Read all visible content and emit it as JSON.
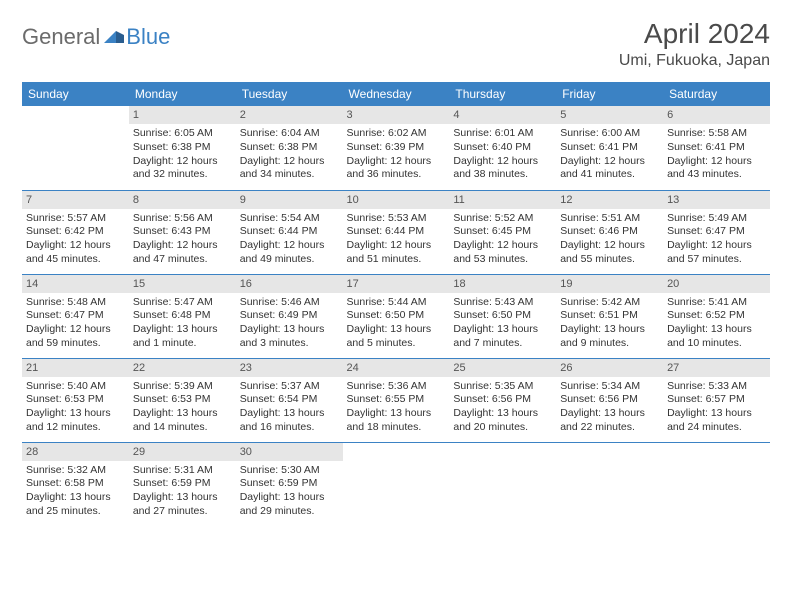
{
  "logo": {
    "general": "General",
    "blue": "Blue"
  },
  "title": "April 2024",
  "location": "Umi, Fukuoka, Japan",
  "weekdays": [
    "Sunday",
    "Monday",
    "Tuesday",
    "Wednesday",
    "Thursday",
    "Friday",
    "Saturday"
  ],
  "colors": {
    "header_bg": "#3b82c4",
    "header_text": "#ffffff",
    "daynum_bg": "#e6e6e6",
    "border": "#3b82c4",
    "text": "#333333",
    "logo_gray": "#6b6b6b",
    "logo_blue": "#3b82c4"
  },
  "weeks": [
    [
      null,
      {
        "n": "1",
        "sr": "Sunrise: 6:05 AM",
        "ss": "Sunset: 6:38 PM",
        "d1": "Daylight: 12 hours",
        "d2": "and 32 minutes."
      },
      {
        "n": "2",
        "sr": "Sunrise: 6:04 AM",
        "ss": "Sunset: 6:38 PM",
        "d1": "Daylight: 12 hours",
        "d2": "and 34 minutes."
      },
      {
        "n": "3",
        "sr": "Sunrise: 6:02 AM",
        "ss": "Sunset: 6:39 PM",
        "d1": "Daylight: 12 hours",
        "d2": "and 36 minutes."
      },
      {
        "n": "4",
        "sr": "Sunrise: 6:01 AM",
        "ss": "Sunset: 6:40 PM",
        "d1": "Daylight: 12 hours",
        "d2": "and 38 minutes."
      },
      {
        "n": "5",
        "sr": "Sunrise: 6:00 AM",
        "ss": "Sunset: 6:41 PM",
        "d1": "Daylight: 12 hours",
        "d2": "and 41 minutes."
      },
      {
        "n": "6",
        "sr": "Sunrise: 5:58 AM",
        "ss": "Sunset: 6:41 PM",
        "d1": "Daylight: 12 hours",
        "d2": "and 43 minutes."
      }
    ],
    [
      {
        "n": "7",
        "sr": "Sunrise: 5:57 AM",
        "ss": "Sunset: 6:42 PM",
        "d1": "Daylight: 12 hours",
        "d2": "and 45 minutes."
      },
      {
        "n": "8",
        "sr": "Sunrise: 5:56 AM",
        "ss": "Sunset: 6:43 PM",
        "d1": "Daylight: 12 hours",
        "d2": "and 47 minutes."
      },
      {
        "n": "9",
        "sr": "Sunrise: 5:54 AM",
        "ss": "Sunset: 6:44 PM",
        "d1": "Daylight: 12 hours",
        "d2": "and 49 minutes."
      },
      {
        "n": "10",
        "sr": "Sunrise: 5:53 AM",
        "ss": "Sunset: 6:44 PM",
        "d1": "Daylight: 12 hours",
        "d2": "and 51 minutes."
      },
      {
        "n": "11",
        "sr": "Sunrise: 5:52 AM",
        "ss": "Sunset: 6:45 PM",
        "d1": "Daylight: 12 hours",
        "d2": "and 53 minutes."
      },
      {
        "n": "12",
        "sr": "Sunrise: 5:51 AM",
        "ss": "Sunset: 6:46 PM",
        "d1": "Daylight: 12 hours",
        "d2": "and 55 minutes."
      },
      {
        "n": "13",
        "sr": "Sunrise: 5:49 AM",
        "ss": "Sunset: 6:47 PM",
        "d1": "Daylight: 12 hours",
        "d2": "and 57 minutes."
      }
    ],
    [
      {
        "n": "14",
        "sr": "Sunrise: 5:48 AM",
        "ss": "Sunset: 6:47 PM",
        "d1": "Daylight: 12 hours",
        "d2": "and 59 minutes."
      },
      {
        "n": "15",
        "sr": "Sunrise: 5:47 AM",
        "ss": "Sunset: 6:48 PM",
        "d1": "Daylight: 13 hours",
        "d2": "and 1 minute."
      },
      {
        "n": "16",
        "sr": "Sunrise: 5:46 AM",
        "ss": "Sunset: 6:49 PM",
        "d1": "Daylight: 13 hours",
        "d2": "and 3 minutes."
      },
      {
        "n": "17",
        "sr": "Sunrise: 5:44 AM",
        "ss": "Sunset: 6:50 PM",
        "d1": "Daylight: 13 hours",
        "d2": "and 5 minutes."
      },
      {
        "n": "18",
        "sr": "Sunrise: 5:43 AM",
        "ss": "Sunset: 6:50 PM",
        "d1": "Daylight: 13 hours",
        "d2": "and 7 minutes."
      },
      {
        "n": "19",
        "sr": "Sunrise: 5:42 AM",
        "ss": "Sunset: 6:51 PM",
        "d1": "Daylight: 13 hours",
        "d2": "and 9 minutes."
      },
      {
        "n": "20",
        "sr": "Sunrise: 5:41 AM",
        "ss": "Sunset: 6:52 PM",
        "d1": "Daylight: 13 hours",
        "d2": "and 10 minutes."
      }
    ],
    [
      {
        "n": "21",
        "sr": "Sunrise: 5:40 AM",
        "ss": "Sunset: 6:53 PM",
        "d1": "Daylight: 13 hours",
        "d2": "and 12 minutes."
      },
      {
        "n": "22",
        "sr": "Sunrise: 5:39 AM",
        "ss": "Sunset: 6:53 PM",
        "d1": "Daylight: 13 hours",
        "d2": "and 14 minutes."
      },
      {
        "n": "23",
        "sr": "Sunrise: 5:37 AM",
        "ss": "Sunset: 6:54 PM",
        "d1": "Daylight: 13 hours",
        "d2": "and 16 minutes."
      },
      {
        "n": "24",
        "sr": "Sunrise: 5:36 AM",
        "ss": "Sunset: 6:55 PM",
        "d1": "Daylight: 13 hours",
        "d2": "and 18 minutes."
      },
      {
        "n": "25",
        "sr": "Sunrise: 5:35 AM",
        "ss": "Sunset: 6:56 PM",
        "d1": "Daylight: 13 hours",
        "d2": "and 20 minutes."
      },
      {
        "n": "26",
        "sr": "Sunrise: 5:34 AM",
        "ss": "Sunset: 6:56 PM",
        "d1": "Daylight: 13 hours",
        "d2": "and 22 minutes."
      },
      {
        "n": "27",
        "sr": "Sunrise: 5:33 AM",
        "ss": "Sunset: 6:57 PM",
        "d1": "Daylight: 13 hours",
        "d2": "and 24 minutes."
      }
    ],
    [
      {
        "n": "28",
        "sr": "Sunrise: 5:32 AM",
        "ss": "Sunset: 6:58 PM",
        "d1": "Daylight: 13 hours",
        "d2": "and 25 minutes."
      },
      {
        "n": "29",
        "sr": "Sunrise: 5:31 AM",
        "ss": "Sunset: 6:59 PM",
        "d1": "Daylight: 13 hours",
        "d2": "and 27 minutes."
      },
      {
        "n": "30",
        "sr": "Sunrise: 5:30 AM",
        "ss": "Sunset: 6:59 PM",
        "d1": "Daylight: 13 hours",
        "d2": "and 29 minutes."
      },
      null,
      null,
      null,
      null
    ]
  ]
}
